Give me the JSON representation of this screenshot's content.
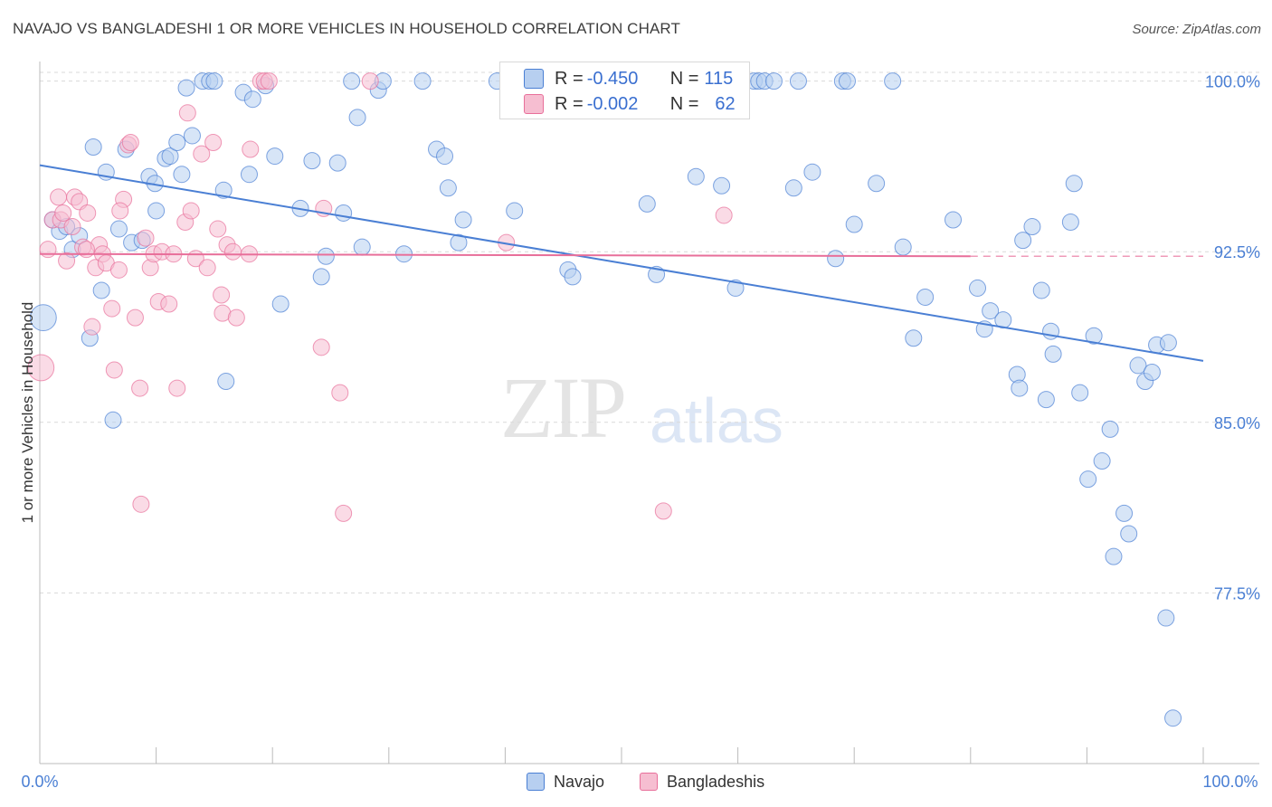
{
  "title": "NAVAJO VS BANGLADESHI 1 OR MORE VEHICLES IN HOUSEHOLD CORRELATION CHART",
  "source": "Source: ZipAtlas.com",
  "watermark": {
    "zip": "ZIP",
    "atlas": "atlas"
  },
  "colors": {
    "navajo": "#4a7fd4",
    "navajo_fill": "#b7cff0",
    "bangladeshi": "#e86f9a",
    "bangladeshi_fill": "#f6bed1",
    "axis_label": "#4a7fd4"
  },
  "legend_box": {
    "rows": [
      {
        "r_label": "R = ",
        "r_value": "-0.450",
        "n_label": "N = ",
        "n_value": "115"
      },
      {
        "r_label": "R = ",
        "r_value": "-0.002",
        "n_label": "N = ",
        "n_value": "62"
      }
    ]
  },
  "bottom_legend": [
    "Navajo",
    "Bangladeshis"
  ],
  "chart_data": {
    "type": "scatter",
    "title": "NAVAJO VS BANGLADESHI 1 OR MORE VEHICLES IN HOUSEHOLD CORRELATION CHART",
    "xlabel": "",
    "ylabel": "1 or more Vehicles in Household",
    "xlim": [
      0,
      100
    ],
    "ylim": [
      70.0,
      100.7
    ],
    "x_tick_labels": [
      "0.0%",
      "100.0%"
    ],
    "y_ticks": [
      77.5,
      85.0,
      92.5,
      100.0
    ],
    "y_tick_labels": [
      "77.5%",
      "85.0%",
      "92.5%",
      "100.0%"
    ],
    "grid": "horizontal dashed",
    "legend_placement": "top-center",
    "series": [
      {
        "name": "Navajo",
        "trend": {
          "x": [
            0,
            100
          ],
          "y": [
            96.3,
            87.7
          ],
          "style": "solid"
        },
        "points": [
          [
            0.3,
            89.6,
            1.6
          ],
          [
            1.1,
            93.9,
            1
          ],
          [
            1.7,
            93.4,
            1
          ],
          [
            2.3,
            93.6,
            1
          ],
          [
            2.8,
            92.6,
            1
          ],
          [
            3.4,
            93.2,
            1
          ],
          [
            4.3,
            88.7,
            1
          ],
          [
            4.6,
            97.1,
            1
          ],
          [
            5.3,
            90.8,
            1
          ],
          [
            5.7,
            96.0,
            1
          ],
          [
            6.3,
            85.1,
            1
          ],
          [
            6.8,
            93.5,
            1
          ],
          [
            7.4,
            97.0,
            1
          ],
          [
            7.9,
            92.9,
            1
          ],
          [
            8.8,
            93.0,
            1
          ],
          [
            9.4,
            95.8,
            1
          ],
          [
            9.9,
            95.5,
            1
          ],
          [
            10.0,
            94.3,
            1
          ],
          [
            10.8,
            96.6,
            1
          ],
          [
            11.2,
            96.7,
            1
          ],
          [
            11.8,
            97.3,
            1
          ],
          [
            12.2,
            95.9,
            1
          ],
          [
            12.6,
            99.7,
            1
          ],
          [
            13.1,
            97.6,
            1
          ],
          [
            14.0,
            100.0,
            1
          ],
          [
            14.6,
            100.0,
            1
          ],
          [
            15.0,
            100.0,
            1
          ],
          [
            15.8,
            95.2,
            1
          ],
          [
            16.0,
            86.8,
            1
          ],
          [
            17.5,
            99.5,
            1
          ],
          [
            18.0,
            95.9,
            1
          ],
          [
            18.3,
            99.2,
            1
          ],
          [
            19.4,
            99.8,
            1
          ],
          [
            20.2,
            96.7,
            1
          ],
          [
            20.7,
            90.2,
            1
          ],
          [
            22.4,
            94.4,
            1
          ],
          [
            23.4,
            96.5,
            1
          ],
          [
            24.2,
            91.4,
            1
          ],
          [
            24.6,
            92.3,
            1
          ],
          [
            25.6,
            96.4,
            1
          ],
          [
            26.1,
            94.2,
            1
          ],
          [
            26.8,
            100.0,
            1
          ],
          [
            27.3,
            98.4,
            1
          ],
          [
            27.7,
            92.7,
            1
          ],
          [
            29.1,
            99.6,
            1
          ],
          [
            29.5,
            100.0,
            1
          ],
          [
            31.3,
            92.4,
            1
          ],
          [
            32.9,
            100.0,
            1
          ],
          [
            34.1,
            97.0,
            1
          ],
          [
            34.8,
            96.7,
            1
          ],
          [
            35.1,
            95.3,
            1
          ],
          [
            36.0,
            92.9,
            1
          ],
          [
            36.4,
            93.9,
            1
          ],
          [
            39.3,
            100.0,
            1
          ],
          [
            40.4,
            100.0,
            1
          ],
          [
            40.8,
            94.3,
            1
          ],
          [
            45.4,
            91.7,
            1
          ],
          [
            45.8,
            91.4,
            1
          ],
          [
            48.4,
            100.0,
            1
          ],
          [
            49.1,
            100.0,
            1
          ],
          [
            50.5,
            100.0,
            1
          ],
          [
            51.1,
            100.0,
            1
          ],
          [
            53.0,
            91.5,
            1
          ],
          [
            52.2,
            94.6,
            1
          ],
          [
            55.1,
            100.0,
            1
          ],
          [
            56.4,
            95.8,
            1
          ],
          [
            58.6,
            95.4,
            1
          ],
          [
            59.8,
            90.9,
            1
          ],
          [
            61.4,
            100.0,
            1
          ],
          [
            61.8,
            100.0,
            1
          ],
          [
            62.3,
            100.0,
            1
          ],
          [
            63.1,
            100.0,
            1
          ],
          [
            64.8,
            95.3,
            1
          ],
          [
            65.2,
            100.0,
            1
          ],
          [
            66.4,
            96.0,
            1
          ],
          [
            68.4,
            92.2,
            1
          ],
          [
            69.0,
            100.0,
            1
          ],
          [
            69.4,
            100.0,
            1
          ],
          [
            70.0,
            93.7,
            1
          ],
          [
            71.9,
            95.5,
            1
          ],
          [
            73.3,
            100.0,
            1
          ],
          [
            74.2,
            92.7,
            1
          ],
          [
            75.1,
            88.7,
            1
          ],
          [
            76.1,
            90.5,
            1
          ],
          [
            78.5,
            93.9,
            1
          ],
          [
            80.6,
            90.9,
            1
          ],
          [
            81.2,
            89.1,
            1
          ],
          [
            81.7,
            89.9,
            1
          ],
          [
            82.8,
            89.5,
            1
          ],
          [
            84.0,
            87.1,
            1
          ],
          [
            84.2,
            86.5,
            1
          ],
          [
            84.5,
            93.0,
            1
          ],
          [
            85.3,
            93.6,
            1
          ],
          [
            86.1,
            90.8,
            1
          ],
          [
            86.5,
            86.0,
            1
          ],
          [
            86.9,
            89.0,
            1
          ],
          [
            87.1,
            88.0,
            1
          ],
          [
            88.6,
            93.8,
            1
          ],
          [
            88.9,
            95.5,
            1
          ],
          [
            89.4,
            86.3,
            1
          ],
          [
            90.1,
            82.5,
            1
          ],
          [
            90.6,
            88.8,
            1
          ],
          [
            91.3,
            83.3,
            1
          ],
          [
            92.0,
            84.7,
            1
          ],
          [
            92.3,
            79.1,
            1
          ],
          [
            93.2,
            81.0,
            1
          ],
          [
            93.6,
            80.1,
            1
          ],
          [
            94.4,
            87.5,
            1
          ],
          [
            95.0,
            86.8,
            1
          ],
          [
            95.6,
            87.2,
            1
          ],
          [
            96.0,
            88.4,
            1
          ],
          [
            96.8,
            76.4,
            1
          ],
          [
            97.0,
            88.5,
            1
          ],
          [
            97.4,
            72.0,
            1
          ]
        ]
      },
      {
        "name": "Bangladeshis",
        "trend": {
          "x": [
            0,
            80
          ],
          "y": [
            92.4,
            92.3
          ],
          "style": "solid",
          "extension_to": 100
        },
        "points": [
          [
            0.1,
            87.4,
            1.6
          ],
          [
            0.7,
            92.6,
            1
          ],
          [
            1.1,
            93.9,
            1
          ],
          [
            1.6,
            94.9,
            1
          ],
          [
            1.8,
            93.9,
            1
          ],
          [
            2.3,
            92.1,
            1
          ],
          [
            2.8,
            93.6,
            1
          ],
          [
            3.0,
            94.9,
            1
          ],
          [
            3.4,
            94.7,
            1
          ],
          [
            3.7,
            92.7,
            1
          ],
          [
            4.1,
            94.2,
            1
          ],
          [
            4.5,
            89.2,
            1
          ],
          [
            4.8,
            91.8,
            1
          ],
          [
            5.1,
            92.8,
            1
          ],
          [
            5.4,
            92.4,
            1
          ],
          [
            5.7,
            92.0,
            1
          ],
          [
            6.2,
            90.0,
            1
          ],
          [
            6.4,
            87.3,
            1
          ],
          [
            6.8,
            91.7,
            1
          ],
          [
            7.2,
            94.8,
            1
          ],
          [
            7.6,
            97.2,
            1
          ],
          [
            7.8,
            97.3,
            1
          ],
          [
            8.2,
            89.6,
            1
          ],
          [
            8.6,
            86.5,
            1
          ],
          [
            8.7,
            81.4,
            1
          ],
          [
            9.1,
            93.1,
            1
          ],
          [
            9.5,
            91.8,
            1
          ],
          [
            9.8,
            92.4,
            1
          ],
          [
            10.2,
            90.3,
            1
          ],
          [
            10.5,
            92.5,
            1
          ],
          [
            11.1,
            90.2,
            1
          ],
          [
            11.5,
            92.4,
            1
          ],
          [
            11.8,
            86.5,
            1
          ],
          [
            12.5,
            93.8,
            1
          ],
          [
            12.7,
            98.6,
            1
          ],
          [
            13.0,
            94.3,
            1
          ],
          [
            13.4,
            92.2,
            1
          ],
          [
            13.9,
            96.8,
            1
          ],
          [
            14.4,
            91.8,
            1
          ],
          [
            14.9,
            97.3,
            1
          ],
          [
            15.3,
            93.5,
            1
          ],
          [
            15.6,
            90.6,
            1
          ],
          [
            15.7,
            89.8,
            1
          ],
          [
            16.1,
            92.8,
            1
          ],
          [
            16.6,
            92.5,
            1
          ],
          [
            16.9,
            89.6,
            1
          ],
          [
            18.0,
            92.4,
            1
          ],
          [
            18.1,
            97.0,
            1
          ],
          [
            19.0,
            100.0,
            1
          ],
          [
            19.3,
            100.0,
            1
          ],
          [
            19.7,
            100.0,
            1
          ],
          [
            24.2,
            88.3,
            1
          ],
          [
            24.4,
            94.4,
            1
          ],
          [
            25.8,
            86.3,
            1
          ],
          [
            26.1,
            81.0,
            1
          ],
          [
            28.4,
            100.0,
            1
          ],
          [
            40.1,
            92.9,
            1
          ],
          [
            53.6,
            81.1,
            1
          ],
          [
            58.8,
            94.1,
            1
          ],
          [
            4.0,
            92.6,
            1
          ],
          [
            6.9,
            94.3,
            1
          ],
          [
            2.0,
            94.2,
            1
          ]
        ]
      }
    ]
  }
}
